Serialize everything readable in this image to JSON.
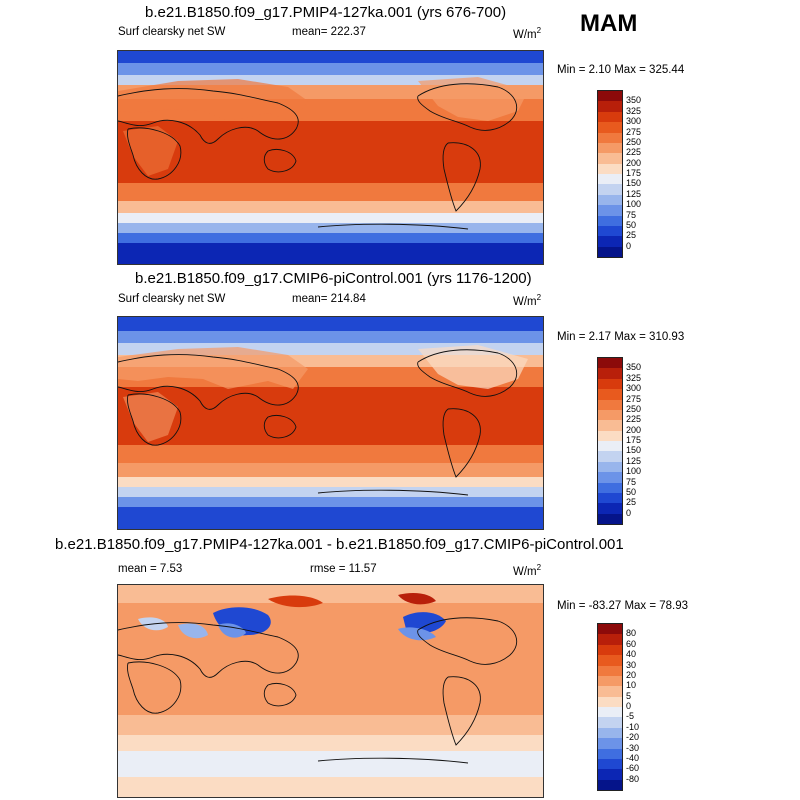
{
  "season": "MAM",
  "units": "W/m",
  "units_sup": "2",
  "panels": [
    {
      "title": "b.e21.B1850.f09_g17.PMIP4-127ka.001 (yrs 676-700)",
      "variable": "Surf clearsky net SW",
      "mean": "mean= 222.37",
      "minmax": "Min =   2.10 Max = 325.44"
    },
    {
      "title": "b.e21.B1850.f09_g17.CMIP6-piControl.001 (yrs 1176-1200)",
      "variable": "Surf clearsky net SW",
      "mean": "mean= 214.84",
      "minmax": "Min =   2.17 Max = 310.93"
    },
    {
      "title": "b.e21.B1850.f09_g17.PMIP4-127ka.001 - b.e21.B1850.f09_g17.CMIP6-piControl.001",
      "mean": "mean =   7.53",
      "rmse": "rmse =  11.57",
      "minmax": "Min = -83.27 Max =  78.93"
    }
  ],
  "colorbar_abs": {
    "labels": [
      "350",
      "325",
      "300",
      "275",
      "250",
      "225",
      "200",
      "175",
      "150",
      "125",
      "100",
      "75",
      "50",
      "25",
      "0"
    ],
    "colors": [
      "#8c0a0a",
      "#b81f0a",
      "#d83b0d",
      "#e85a1e",
      "#f0793e",
      "#f59a66",
      "#f9bc94",
      "#fbdcc3",
      "#eaeef6",
      "#c3d3f0",
      "#98b5ec",
      "#6c93e8",
      "#3f6ee0",
      "#1f48d2",
      "#0c26b4",
      "#05148a"
    ]
  },
  "colorbar_diff": {
    "labels": [
      "80",
      "60",
      "40",
      "30",
      "20",
      "10",
      "5",
      "0",
      "-5",
      "-10",
      "-20",
      "-30",
      "-40",
      "-60",
      "-80"
    ],
    "colors": [
      "#8c0a0a",
      "#b81f0a",
      "#d83b0d",
      "#e85a1e",
      "#f0793e",
      "#f59a66",
      "#f9bc94",
      "#fbdcc3",
      "#eaeef6",
      "#c3d3f0",
      "#98b5ec",
      "#6c93e8",
      "#3f6ee0",
      "#1f48d2",
      "#0c26b4",
      "#05148a"
    ]
  }
}
